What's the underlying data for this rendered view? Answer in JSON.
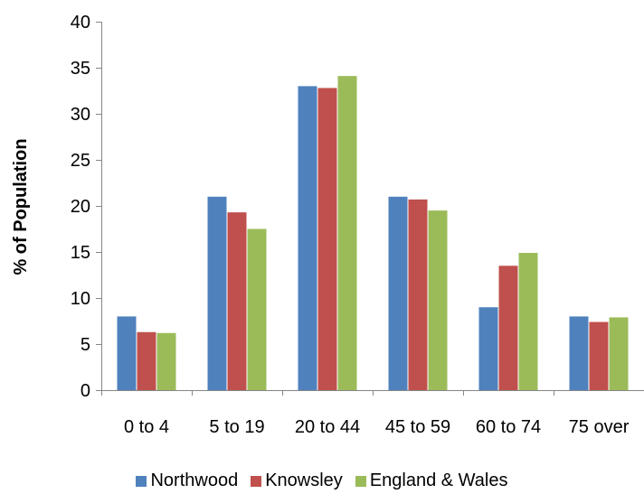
{
  "chart_data": {
    "type": "bar",
    "title": "",
    "xlabel": "",
    "ylabel": "% of Population",
    "ylim": [
      0,
      40
    ],
    "yticks": [
      0,
      5,
      10,
      15,
      20,
      25,
      30,
      35,
      40
    ],
    "grid": false,
    "legend_position": "bottom",
    "categories": [
      "0 to 4",
      "5 to 19",
      "20 to 44",
      "45 to 59",
      "60 to 74",
      "75 over"
    ],
    "series": [
      {
        "name": "Northwood",
        "color": "#4f81bd",
        "values": [
          8,
          21,
          33,
          21,
          9,
          8
        ]
      },
      {
        "name": "Knowsley",
        "color": "#c0504d",
        "values": [
          6.3,
          19.3,
          32.8,
          20.7,
          13.5,
          7.4
        ]
      },
      {
        "name": "England & Wales",
        "color": "#9bbb59",
        "values": [
          6.2,
          17.5,
          34.1,
          19.5,
          14.9,
          7.9
        ]
      }
    ]
  }
}
